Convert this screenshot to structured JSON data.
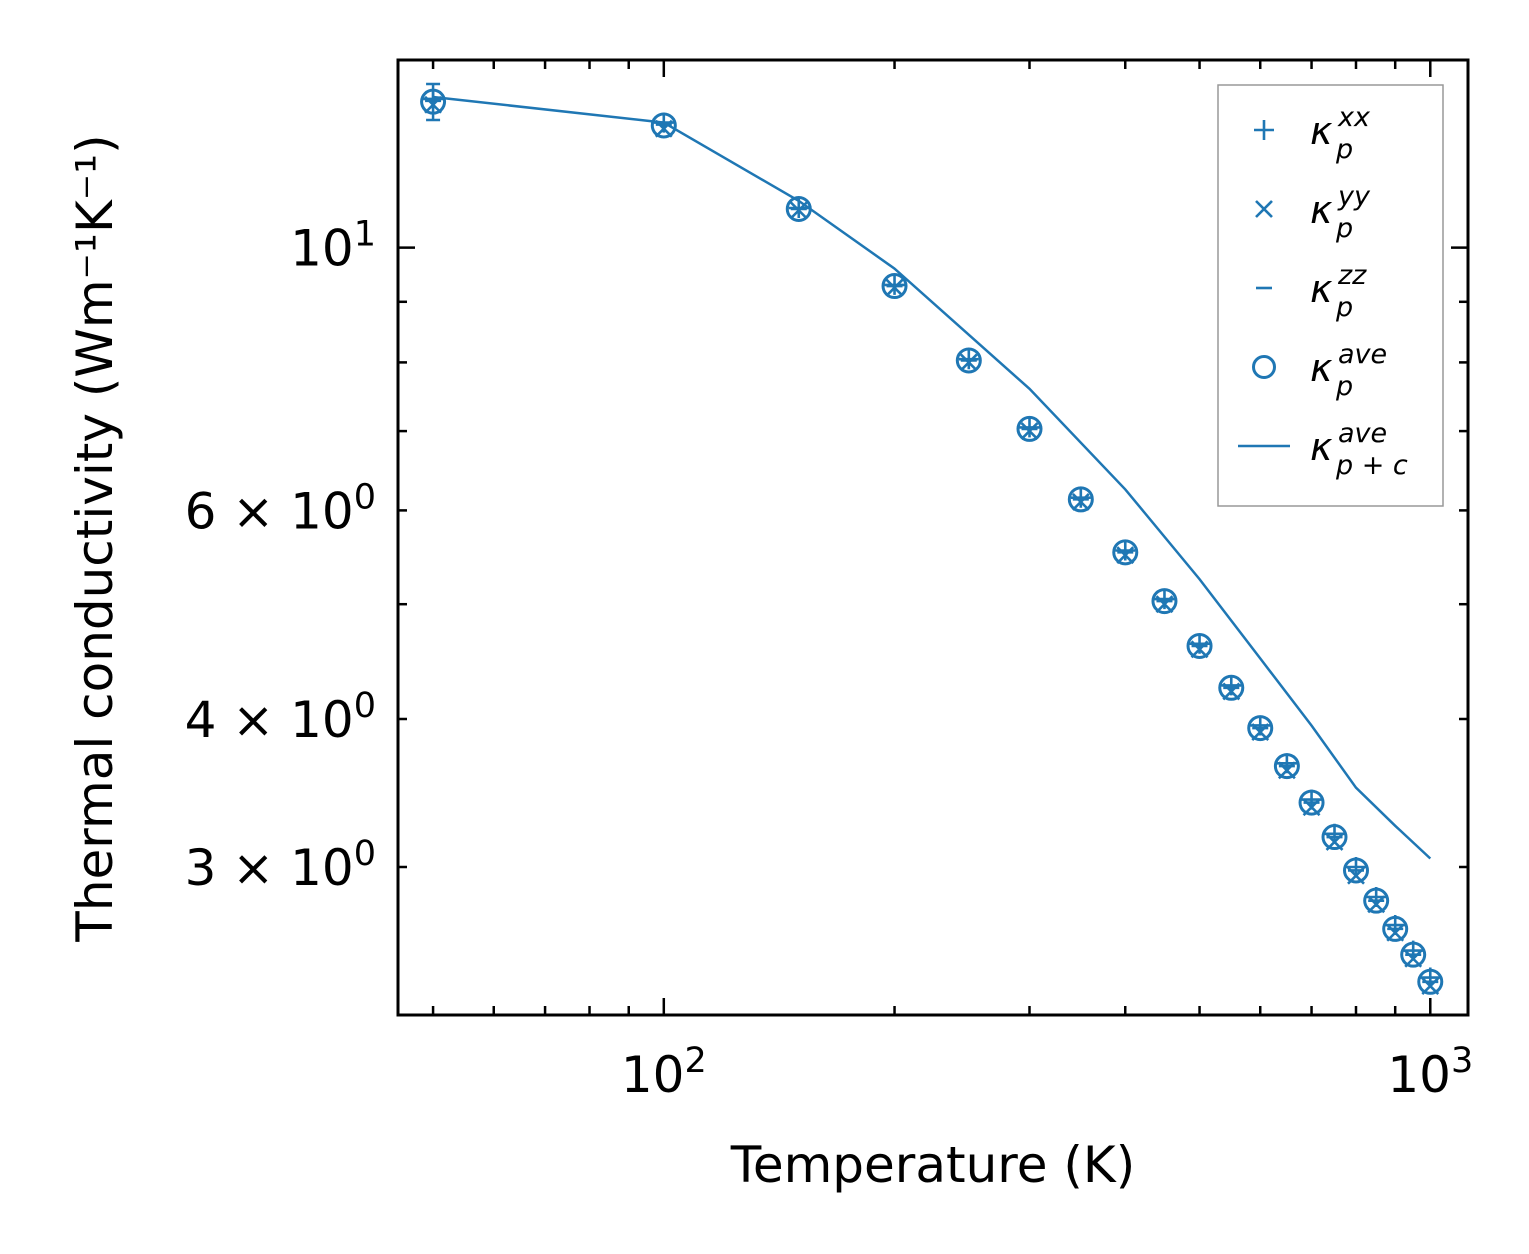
{
  "chart_data": {
    "type": "scatter",
    "xscale": "log",
    "yscale": "log",
    "xlim": [
      45,
      1120
    ],
    "ylim": [
      2.25,
      14.4
    ],
    "xlabel": "Temperature (K)",
    "ylabel": "Thermal conductivity (Wm⁻¹K⁻¹)",
    "grid": false,
    "legend_position": "top-right",
    "x_major_ticks": [
      {
        "value": 100,
        "base": "10",
        "exp": "2"
      },
      {
        "value": 1000,
        "base": "10",
        "exp": "3"
      }
    ],
    "y_major_ticks": [
      {
        "value": 10,
        "base": "10",
        "exp": "1"
      }
    ],
    "y_minor_tick_labels": [
      {
        "value": 6,
        "base": "6 × 10",
        "exp": "0"
      },
      {
        "value": 4,
        "base": "4 × 10",
        "exp": "0"
      },
      {
        "value": 3,
        "base": "3 × 10",
        "exp": "0"
      }
    ],
    "x": [
      50,
      100,
      150,
      200,
      250,
      300,
      350,
      400,
      450,
      500,
      550,
      600,
      650,
      700,
      750,
      800,
      850,
      900,
      950,
      1000
    ],
    "series": [
      {
        "name": "κ_p^xx",
        "marker": "plus",
        "values": [
          13.35,
          12.75,
          10.8,
          9.3,
          8.05,
          7.05,
          6.15,
          5.55,
          5.05,
          4.63,
          4.27,
          3.95,
          3.67,
          3.42,
          3.2,
          3.0,
          2.83,
          2.68,
          2.55,
          2.42
        ]
      },
      {
        "name": "κ_p^yy",
        "marker": "x",
        "values": [
          13.2,
          12.6,
          10.75,
          9.25,
          8.0,
          7.0,
          6.1,
          5.5,
          5.0,
          4.58,
          4.22,
          3.9,
          3.62,
          3.37,
          3.15,
          2.95,
          2.79,
          2.64,
          2.51,
          2.38
        ]
      },
      {
        "name": "κ_p^zz",
        "marker": "hline",
        "values": [
          13.3,
          12.7,
          10.78,
          9.28,
          8.03,
          7.03,
          6.13,
          5.53,
          5.03,
          4.61,
          4.25,
          3.93,
          3.65,
          3.4,
          3.18,
          2.98,
          2.81,
          2.66,
          2.53,
          2.4
        ]
      },
      {
        "name": "κ_p^ave",
        "marker": "circle",
        "values": [
          13.28,
          12.68,
          10.78,
          9.28,
          8.03,
          7.03,
          6.13,
          5.53,
          5.03,
          4.61,
          4.25,
          3.93,
          3.65,
          3.4,
          3.18,
          2.98,
          2.81,
          2.66,
          2.53,
          2.4
        ]
      },
      {
        "name": "κ_p+c^ave",
        "marker": "line",
        "values": [
          13.4,
          12.75,
          null,
          null,
          null,
          null,
          null,
          null,
          null,
          null,
          null,
          null,
          null,
          null,
          null,
          null,
          null,
          null,
          null,
          3.05
        ],
        "line_points": [
          [
            50,
            13.4
          ],
          [
            100,
            12.75
          ],
          [
            150,
            10.95
          ],
          [
            200,
            9.6
          ],
          [
            300,
            7.6
          ],
          [
            400,
            6.25
          ],
          [
            500,
            5.25
          ],
          [
            600,
            4.5
          ],
          [
            700,
            3.95
          ],
          [
            800,
            3.5
          ],
          [
            900,
            3.25
          ],
          [
            1000,
            3.05
          ]
        ]
      }
    ],
    "legend": [
      {
        "marker": "plus",
        "base": "κ",
        "sub": "p",
        "sup": "xx"
      },
      {
        "marker": "x",
        "base": "κ",
        "sub": "p",
        "sup": "yy"
      },
      {
        "marker": "hline",
        "base": "κ",
        "sub": "p",
        "sup": "zz"
      },
      {
        "marker": "circle",
        "base": "κ",
        "sub": "p",
        "sup": "ave"
      },
      {
        "marker": "line",
        "base": "κ",
        "sub": "p + c",
        "sup": "ave"
      }
    ],
    "color": "#1f77b4"
  }
}
